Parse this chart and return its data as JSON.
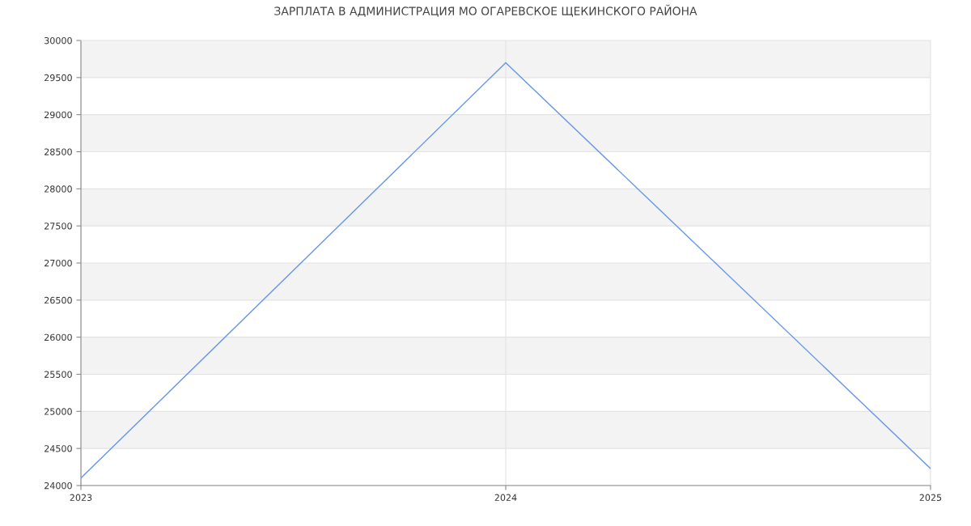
{
  "chart_data": {
    "type": "line",
    "title": "ЗАРПЛАТА В АДМИНИСТРАЦИЯ МО ОГАРЕВСКОЕ ЩЕКИНСКОГО РАЙОНА",
    "x": [
      "2023",
      "2024",
      "2025"
    ],
    "series": [
      {
        "color": "#6495ed",
        "values": [
          24100,
          29700,
          24230
        ]
      }
    ],
    "xlim": [
      "2023",
      "2025"
    ],
    "xticks": [
      "2023",
      "2024",
      "2025"
    ],
    "ylim": [
      24000,
      30000
    ],
    "yticks": [
      24000,
      24500,
      25000,
      25500,
      26000,
      26500,
      27000,
      27500,
      28000,
      28500,
      29000,
      29500,
      30000
    ],
    "grid": true,
    "marker": "none",
    "line_style": "solid",
    "legend": false
  }
}
